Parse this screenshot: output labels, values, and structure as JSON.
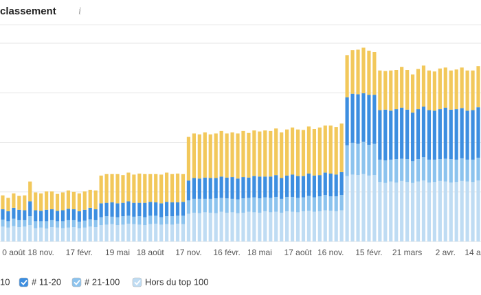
{
  "chart_data": {
    "type": "stacked_bar",
    "title": "classement",
    "info_icon": "i",
    "categories": [
      null,
      null,
      "0 août",
      null,
      null,
      null,
      null,
      "18 nov.",
      null,
      null,
      null,
      null,
      null,
      null,
      "17 févr.",
      null,
      null,
      null,
      null,
      null,
      null,
      "19 mai",
      null,
      null,
      null,
      null,
      null,
      "18 août",
      null,
      null,
      null,
      null,
      null,
      null,
      "17 nov.",
      null,
      null,
      null,
      null,
      null,
      null,
      "16 févr.",
      null,
      null,
      null,
      null,
      null,
      "18 mai",
      null,
      null,
      null,
      null,
      null,
      null,
      "17 août",
      null,
      null,
      null,
      null,
      null,
      "16 nov.",
      null,
      null,
      null,
      null,
      null,
      null,
      "15 févr.",
      null,
      null,
      null,
      null,
      null,
      null,
      "21 mars",
      null,
      null,
      null,
      null,
      null,
      null,
      "2 avr.",
      null,
      null,
      null,
      null,
      "14 a",
      null
    ],
    "series": [
      {
        "name": "Hors du top 100",
        "color": "#bfdcf3",
        "values": [
          30,
          28,
          31,
          29,
          30,
          33,
          27,
          28,
          26,
          29,
          28,
          27,
          28,
          29,
          27,
          28,
          30,
          29,
          33,
          34,
          35,
          33,
          34,
          36,
          35,
          34,
          33,
          35,
          36,
          34,
          35,
          34,
          36,
          35,
          56,
          58,
          57,
          59,
          58,
          57,
          60,
          58,
          59,
          57,
          58,
          60,
          59,
          58,
          61,
          59,
          60,
          58,
          61,
          60,
          59,
          61,
          62,
          60,
          61,
          63,
          62,
          61,
          63,
          132,
          135,
          134,
          136,
          133,
          134,
          120,
          118,
          121,
          119,
          122,
          120,
          118,
          121,
          123,
          119,
          120,
          122,
          121,
          119,
          120,
          122,
          121,
          120,
          123
        ]
      },
      {
        "name": "# 21-100",
        "color": "#8cc3ee",
        "values": [
          14,
          13,
          15,
          14,
          13,
          18,
          14,
          13,
          15,
          14,
          13,
          14,
          15,
          14,
          13,
          14,
          15,
          14,
          16,
          17,
          15,
          16,
          17,
          16,
          15,
          17,
          16,
          17,
          16,
          15,
          16,
          17,
          16,
          17,
          27,
          28,
          29,
          27,
          28,
          30,
          28,
          29,
          27,
          28,
          29,
          28,
          30,
          29,
          28,
          29,
          30,
          28,
          29,
          30,
          29,
          28,
          30,
          29,
          30,
          31,
          29,
          30,
          31,
          62,
          64,
          63,
          65,
          62,
          63,
          45,
          46,
          44,
          47,
          45,
          46,
          44,
          45,
          47,
          46,
          45,
          44,
          46,
          47,
          45,
          46,
          44,
          45,
          46
        ]
      },
      {
        "name": "# 11-20",
        "color": "#3d8ee0",
        "values": [
          21,
          20,
          22,
          21,
          20,
          30,
          22,
          21,
          23,
          22,
          21,
          22,
          23,
          22,
          21,
          22,
          23,
          22,
          28,
          27,
          29,
          28,
          27,
          29,
          28,
          27,
          29,
          28,
          27,
          28,
          29,
          28,
          27,
          28,
          40,
          42,
          41,
          43,
          42,
          41,
          43,
          42,
          44,
          42,
          43,
          41,
          43,
          44,
          42,
          43,
          44,
          42,
          43,
          45,
          44,
          43,
          45,
          44,
          43,
          45,
          46,
          44,
          46,
          97,
          99,
          100,
          98,
          101,
          99,
          100,
          102,
          99,
          101,
          103,
          100,
          98,
          101,
          102,
          100,
          99,
          101,
          103,
          100,
          102,
          101,
          99,
          100,
          102
        ]
      },
      {
        "name": "10",
        "color": "#f2c85b",
        "values": [
          28,
          27,
          29,
          28,
          30,
          40,
          36,
          35,
          37,
          36,
          34,
          36,
          37,
          35,
          36,
          37,
          36,
          38,
          56,
          58,
          57,
          59,
          56,
          58,
          57,
          59,
          58,
          56,
          57,
          58,
          59,
          57,
          58,
          56,
          88,
          90,
          89,
          91,
          88,
          90,
          92,
          89,
          90,
          91,
          93,
          90,
          92,
          91,
          93,
          92,
          94,
          92,
          93,
          95,
          94,
          93,
          95,
          94,
          96,
          95,
          97,
          96,
          98,
          85,
          88,
          90,
          92,
          89,
          86,
          80,
          78,
          81,
          79,
          82,
          80,
          77,
          81,
          83,
          80,
          79,
          82,
          81,
          79,
          80,
          82,
          81,
          80,
          83
        ]
      }
    ],
    "legend_order": [
      3,
      2,
      1,
      0
    ],
    "ylim": [
      0,
      400
    ],
    "yticks": [
      0,
      100,
      200,
      300,
      400
    ],
    "grid": true
  }
}
